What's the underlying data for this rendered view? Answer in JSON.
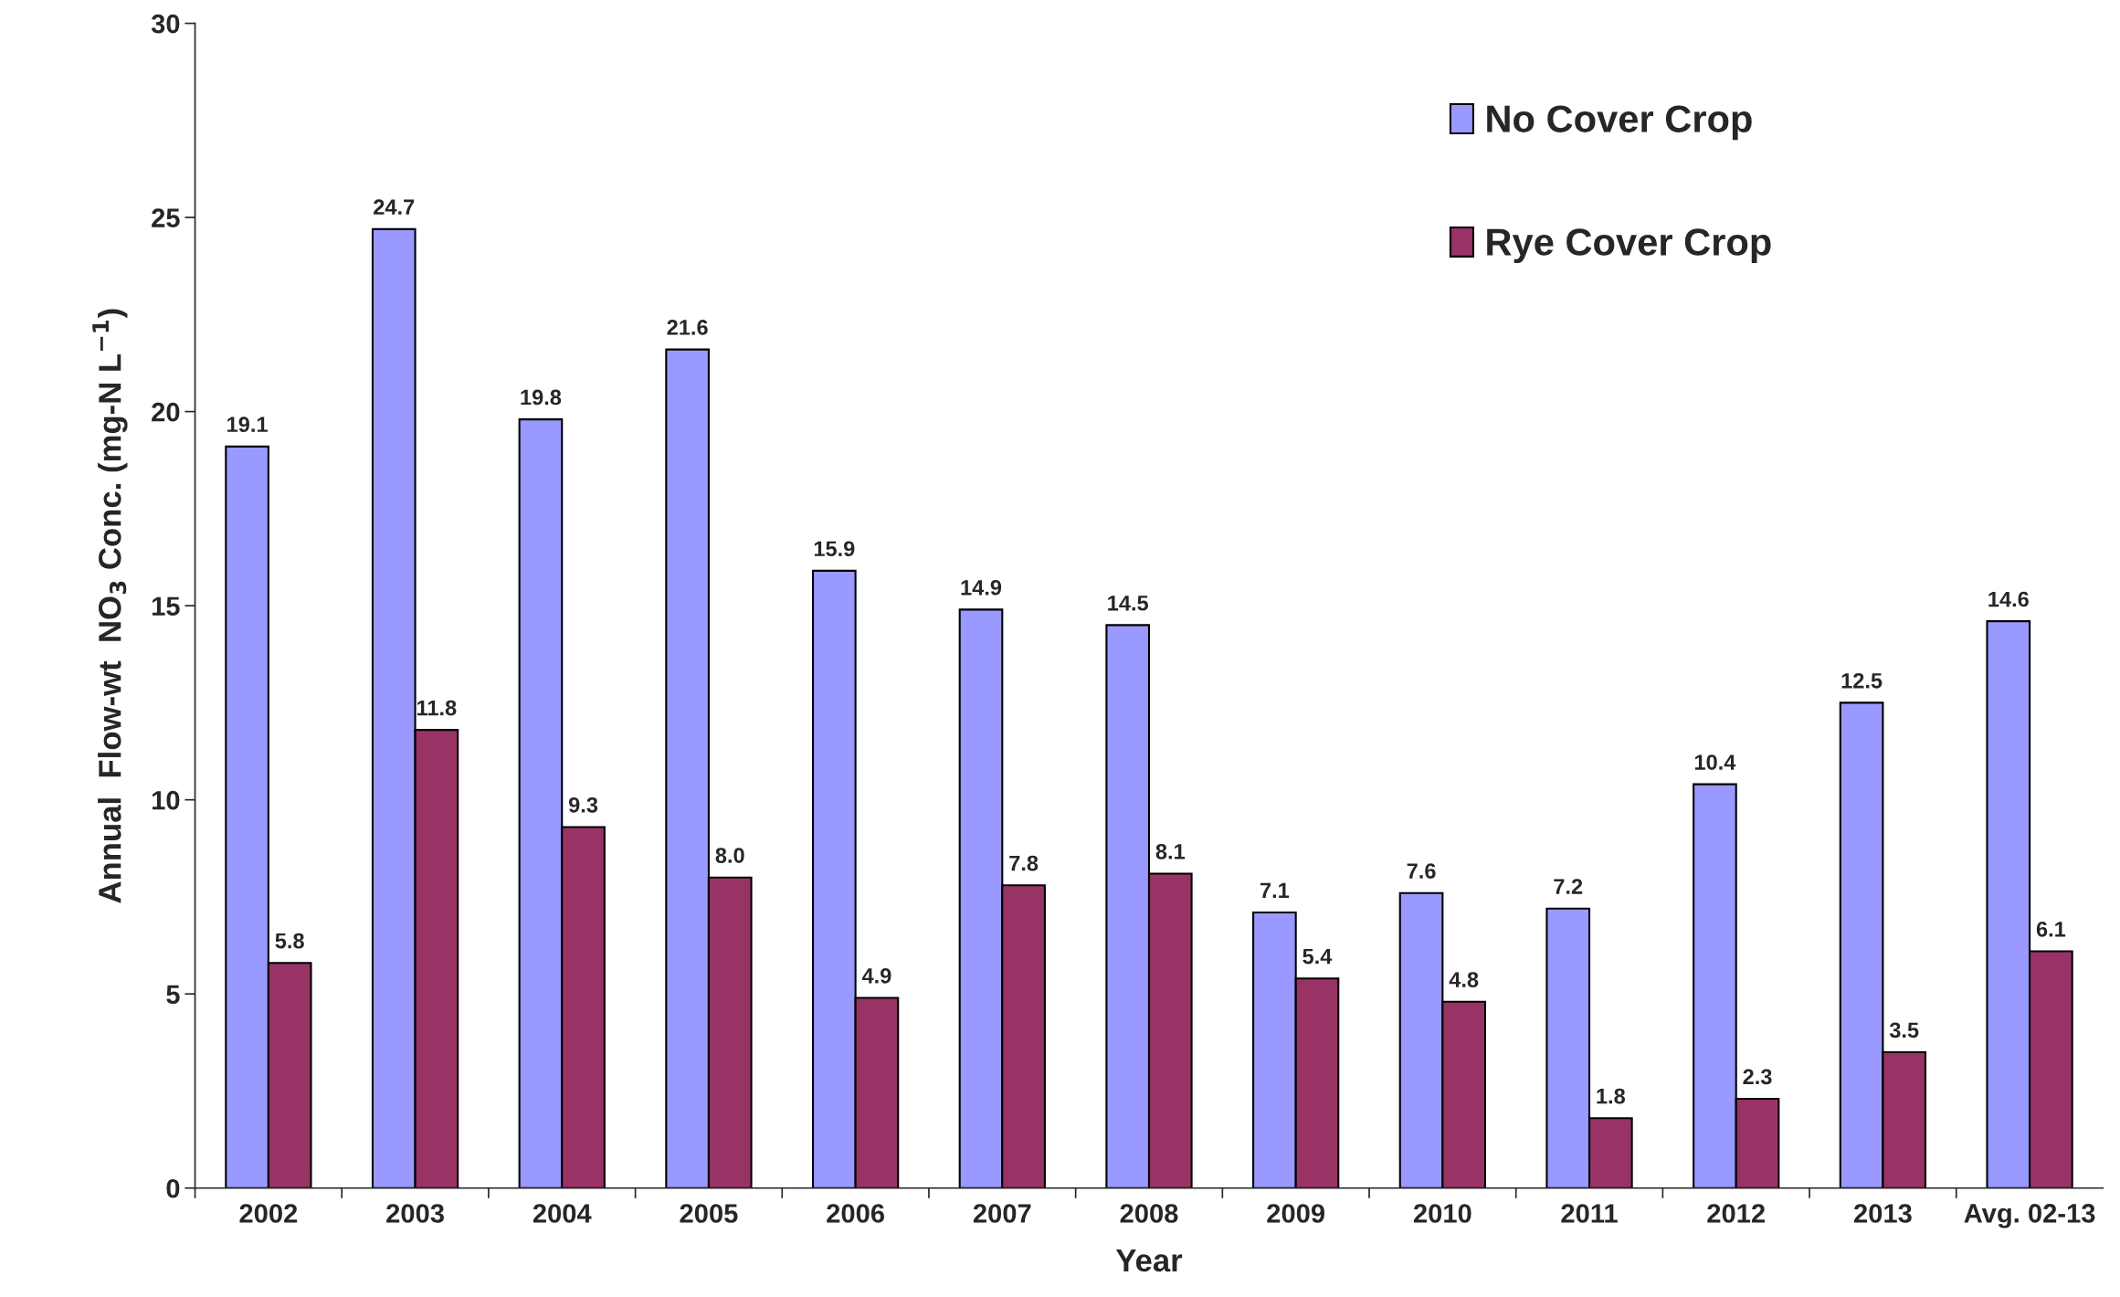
{
  "chart_data": {
    "type": "bar",
    "xlabel": "Year",
    "ylabel": "Annual  Flow-wt  NO$_{3}$ Conc. (mg-N L$^{−1}$)",
    "categories": [
      "2002",
      "2003",
      "2004",
      "2005",
      "2006",
      "2007",
      "2008",
      "2009",
      "2010",
      "2011",
      "2012",
      "2013",
      "Avg. 02-13"
    ],
    "series": [
      {
        "name": "No Cover Crop",
        "color": "#9999ff",
        "values": [
          19.1,
          24.7,
          19.8,
          21.6,
          15.9,
          14.9,
          14.5,
          7.1,
          7.6,
          7.2,
          10.4,
          12.5,
          14.6
        ],
        "value_labels": [
          "19.1",
          "24.7",
          "19.8",
          "21.6",
          "15.9",
          "14.9",
          "14.5",
          "7.1",
          "7.6",
          "7.2",
          "10.4",
          "12.5",
          "14.6"
        ]
      },
      {
        "name": "Rye Cover Crop",
        "color": "#993366",
        "values": [
          5.8,
          11.8,
          9.3,
          8.0,
          4.9,
          7.8,
          8.1,
          5.4,
          4.8,
          1.8,
          2.3,
          3.5,
          6.1
        ],
        "value_labels": [
          "5.8",
          "11.8",
          "9.3",
          "8.0",
          "4.9",
          "7.8",
          "8.1",
          "5.4",
          "4.8",
          "1.8",
          "2.3",
          "3.5",
          "6.1"
        ]
      }
    ],
    "ylim": [
      0,
      30
    ],
    "yticks": [
      0,
      5,
      10,
      15,
      20,
      25,
      30
    ],
    "grid": false,
    "legend": "top right"
  }
}
